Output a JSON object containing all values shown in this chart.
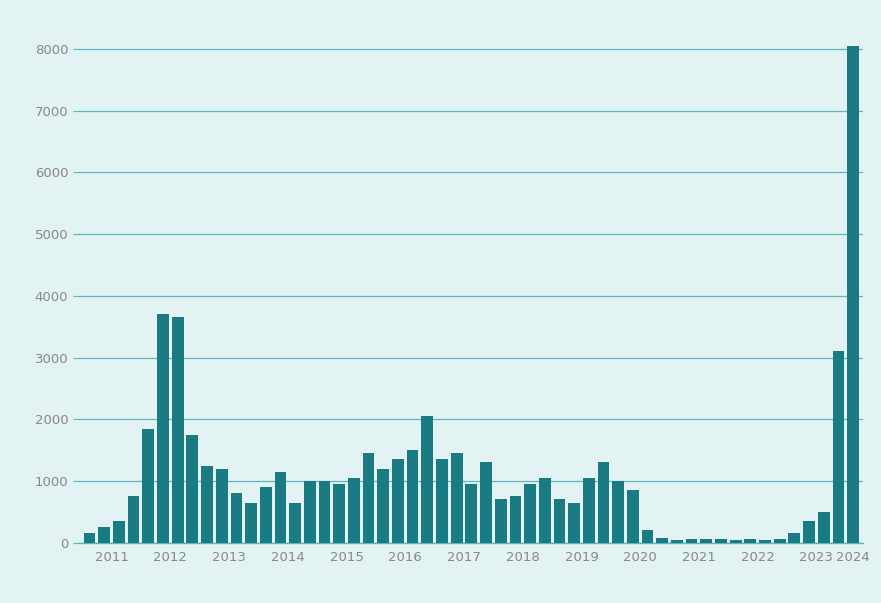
{
  "values": [
    150,
    250,
    350,
    750,
    1850,
    3700,
    3650,
    1750,
    1250,
    1200,
    800,
    650,
    900,
    1150,
    650,
    1000,
    1000,
    950,
    1050,
    1450,
    1200,
    1350,
    1500,
    2050,
    1350,
    1450,
    950,
    1300,
    700,
    750,
    950,
    1050,
    700,
    650,
    1050,
    1300,
    1000,
    850,
    200,
    70,
    50,
    60,
    60,
    60,
    50,
    55,
    50,
    60,
    150,
    350,
    500,
    3100,
    8050
  ],
  "x_tick_labels": [
    "2011",
    "2012",
    "2013",
    "2014",
    "2015",
    "2016",
    "2017",
    "2018",
    "2019",
    "2020",
    "2021",
    "2022",
    "2023",
    "2024"
  ],
  "bar_color": "#1b7b82",
  "background_color": "#e3f2f2",
  "ylim": [
    0,
    8500
  ],
  "yticks": [
    0,
    1000,
    2000,
    3000,
    4000,
    5000,
    6000,
    7000,
    8000
  ],
  "grid_color": "#5cb8c0",
  "tick_label_color": "#888888",
  "bar_width": 0.8,
  "figwidth": 8.81,
  "figheight": 6.03,
  "dpi": 100
}
